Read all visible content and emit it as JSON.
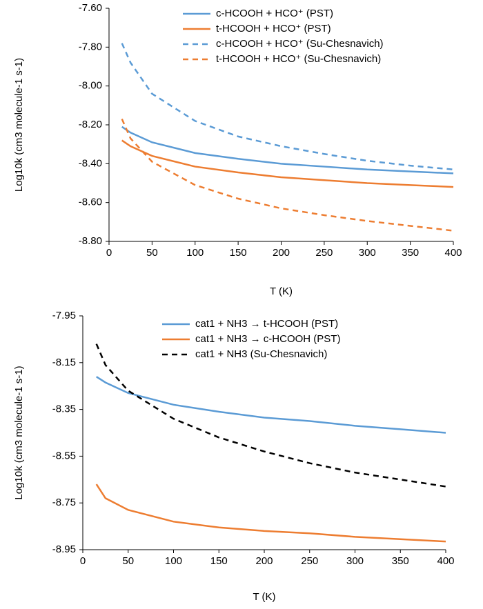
{
  "chart_data": [
    {
      "type": "line",
      "xlabel": "T (K)",
      "ylabel": "Log10k (cm3 molecule-1 s-1)",
      "x": [
        15,
        25,
        50,
        100,
        150,
        200,
        250,
        300,
        350,
        400
      ],
      "xlim": [
        0,
        400
      ],
      "xticks": [
        0,
        50,
        100,
        150,
        200,
        250,
        300,
        350,
        400
      ],
      "ylim": [
        -8.8,
        -7.6
      ],
      "yticks": [
        {
          "value": -8.8,
          "label": "-8.80"
        },
        {
          "value": -8.6,
          "label": "-8.60"
        },
        {
          "value": -8.4,
          "label": "-8.40"
        },
        {
          "value": -8.2,
          "label": "-8.20"
        },
        {
          "value": -8.0,
          "label": "-8.00"
        },
        {
          "value": -7.8,
          "label": "-7.80"
        },
        {
          "value": -7.6,
          "label": "-7.60"
        }
      ],
      "legend": "upper right",
      "series": [
        {
          "name": "c-HCOOH + HCO⁺ (PST)",
          "color": "#5b9bd5",
          "dashed": false,
          "values": [
            -8.21,
            -8.24,
            -8.29,
            -8.345,
            -8.375,
            -8.4,
            -8.415,
            -8.43,
            -8.44,
            -8.45
          ]
        },
        {
          "name": "t-HCOOH + HCO⁺ (PST)",
          "color": "#ed7d31",
          "dashed": false,
          "values": [
            -8.28,
            -8.31,
            -8.36,
            -8.415,
            -8.445,
            -8.47,
            -8.485,
            -8.5,
            -8.51,
            -8.52
          ]
        },
        {
          "name": "c-HCOOH + HCO⁺ (Su-Chesnavich)",
          "color": "#5b9bd5",
          "dashed": true,
          "values": [
            -7.78,
            -7.88,
            -8.04,
            -8.18,
            -8.26,
            -8.31,
            -8.35,
            -8.385,
            -8.41,
            -8.43
          ]
        },
        {
          "name": "t-HCOOH + HCO⁺ (Su-Chesnavich)",
          "color": "#ed7d31",
          "dashed": true,
          "values": [
            -8.17,
            -8.27,
            -8.39,
            -8.51,
            -8.58,
            -8.63,
            -8.665,
            -8.695,
            -8.72,
            -8.745
          ]
        }
      ]
    },
    {
      "type": "line",
      "xlabel": "T (K)",
      "ylabel": "Log10k (cm3 molecule-1 s-1)",
      "x": [
        15,
        25,
        50,
        100,
        150,
        200,
        250,
        300,
        350,
        400
      ],
      "xlim": [
        0,
        400
      ],
      "xticks": [
        0,
        50,
        100,
        150,
        200,
        250,
        300,
        350,
        400
      ],
      "ylim": [
        -8.95,
        -7.95
      ],
      "yticks": [
        {
          "value": -8.95,
          "label": "-8.95"
        },
        {
          "value": -8.75,
          "label": "-8.75"
        },
        {
          "value": -8.55,
          "label": "-8.55"
        },
        {
          "value": -8.35,
          "label": "-8.35"
        },
        {
          "value": -8.15,
          "label": "-8.15"
        },
        {
          "value": -7.95,
          "label": "-7.95"
        }
      ],
      "legend": "upper center",
      "series": [
        {
          "name": "cat1 + NH3 → t-HCOOH (PST)",
          "color": "#5b9bd5",
          "dashed": false,
          "values": [
            -8.21,
            -8.235,
            -8.28,
            -8.33,
            -8.36,
            -8.385,
            -8.4,
            -8.42,
            -8.435,
            -8.45
          ]
        },
        {
          "name": "cat1 + NH3 → c-HCOOH (PST)",
          "color": "#ed7d31",
          "dashed": false,
          "values": [
            -8.67,
            -8.73,
            -8.78,
            -8.83,
            -8.855,
            -8.87,
            -8.88,
            -8.895,
            -8.905,
            -8.915
          ]
        },
        {
          "name": "cat1 + NH3 (Su-Chesnavich)",
          "color": "#000000",
          "dashed": true,
          "values": [
            -8.07,
            -8.16,
            -8.27,
            -8.39,
            -8.47,
            -8.53,
            -8.58,
            -8.62,
            -8.65,
            -8.68
          ]
        }
      ]
    }
  ]
}
